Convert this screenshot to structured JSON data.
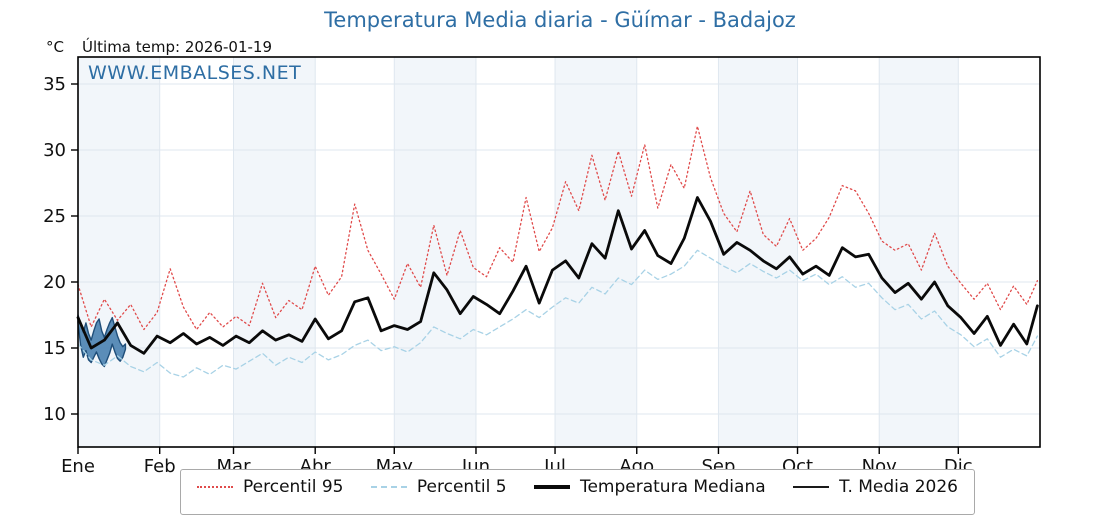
{
  "title": "Temperatura Media diaria - Güímar - Badajoz",
  "header": {
    "y_unit": "°C",
    "last_temp": "Última temp: 2026-01-19"
  },
  "watermark": "WWW.EMBALSES.NET",
  "colors": {
    "title_blue": "#2e6ea4",
    "band": "#f2f6fa",
    "grid": "#dfe7ef",
    "axis": "#000000",
    "p95_red": "#e04b4b",
    "p5_lightblue": "#a8d2e6",
    "median_black": "#0a0a0a",
    "t2026_fill": "#4a82b0",
    "t2026_edge": "#1f4e79"
  },
  "legend": [
    {
      "label": "Percentil 95"
    },
    {
      "label": "Percentil 5"
    },
    {
      "label": "Temperatura Mediana"
    },
    {
      "label": "T. Media 2026"
    }
  ],
  "chart_data": {
    "type": "line",
    "title": "Temperatura Media diaria - Güímar - Badajoz",
    "ylabel": "°C",
    "xlabel": "",
    "ylim": [
      7.5,
      37.1
    ],
    "xlim_days": [
      1,
      366
    ],
    "grid": true,
    "legend_position": "bottom",
    "yticks": [
      10,
      15,
      20,
      25,
      30,
      35
    ],
    "xlabel_months": [
      "Ene",
      "Feb",
      "Mar",
      "Abr",
      "May",
      "Jun",
      "Jul",
      "Ago",
      "Sep",
      "Oct",
      "Nov",
      "Dic"
    ],
    "month_start_days": [
      1,
      32,
      60,
      91,
      121,
      152,
      182,
      213,
      244,
      274,
      305,
      335
    ],
    "x_days": [
      1,
      6,
      11,
      16,
      21,
      26,
      31,
      36,
      41,
      46,
      51,
      56,
      61,
      66,
      71,
      76,
      81,
      86,
      91,
      96,
      101,
      106,
      111,
      116,
      121,
      126,
      131,
      136,
      141,
      146,
      151,
      156,
      161,
      166,
      171,
      176,
      181,
      186,
      191,
      196,
      201,
      206,
      211,
      216,
      221,
      226,
      231,
      236,
      241,
      246,
      251,
      256,
      261,
      266,
      271,
      276,
      281,
      286,
      291,
      296,
      301,
      306,
      311,
      316,
      321,
      326,
      331,
      336,
      341,
      346,
      351,
      356,
      361,
      365
    ],
    "series": [
      {
        "name": "Percentil 95",
        "color": "#e04b4b",
        "dash": "1.5 3",
        "width": 1.3,
        "values": [
          19.8,
          16.6,
          18.7,
          17.1,
          18.3,
          16.4,
          17.7,
          21.0,
          18.1,
          16.4,
          17.7,
          16.6,
          17.4,
          16.7,
          19.9,
          17.3,
          18.6,
          17.9,
          21.2,
          19.0,
          20.4,
          25.9,
          22.4,
          20.6,
          18.7,
          21.4,
          19.6,
          24.3,
          20.5,
          23.9,
          21.1,
          20.4,
          22.6,
          21.5,
          26.4,
          22.3,
          24.1,
          27.6,
          25.4,
          29.6,
          26.2,
          29.9,
          26.5,
          30.4,
          25.6,
          28.9,
          27.1,
          31.8,
          27.9,
          25.2,
          23.8,
          26.9,
          23.6,
          22.7,
          24.8,
          22.4,
          23.3,
          24.9,
          27.3,
          26.9,
          25.2,
          23.1,
          22.4,
          22.9,
          20.9,
          23.7,
          21.2,
          19.9,
          18.7,
          19.9,
          17.9,
          19.7,
          18.3,
          20.1
        ]
      },
      {
        "name": "Percentil 5",
        "color": "#a8d2e6",
        "dash": "5 3.5",
        "width": 1.3,
        "values": [
          15.3,
          14.1,
          13.7,
          14.4,
          13.6,
          13.2,
          13.9,
          13.1,
          12.8,
          13.5,
          13.0,
          13.7,
          13.4,
          14.0,
          14.6,
          13.7,
          14.3,
          13.9,
          14.7,
          14.1,
          14.5,
          15.2,
          15.6,
          14.8,
          15.1,
          14.7,
          15.4,
          16.6,
          16.1,
          15.7,
          16.4,
          16.0,
          16.6,
          17.2,
          17.9,
          17.3,
          18.1,
          18.8,
          18.4,
          19.6,
          19.1,
          20.3,
          19.8,
          20.9,
          20.2,
          20.6,
          21.2,
          22.4,
          21.8,
          21.2,
          20.7,
          21.4,
          20.8,
          20.3,
          20.9,
          20.1,
          20.6,
          19.8,
          20.4,
          19.6,
          19.9,
          18.8,
          17.9,
          18.3,
          17.2,
          17.8,
          16.6,
          16.0,
          15.1,
          15.7,
          14.3,
          14.9,
          14.4,
          15.9
        ]
      },
      {
        "name": "Temperatura Mediana",
        "color": "#0a0a0a",
        "dash": "",
        "width": 2.8,
        "values": [
          17.3,
          15.0,
          15.6,
          16.9,
          15.2,
          14.6,
          15.9,
          15.4,
          16.1,
          15.3,
          15.8,
          15.2,
          15.9,
          15.4,
          16.3,
          15.6,
          16.0,
          15.5,
          17.2,
          15.7,
          16.3,
          18.5,
          18.8,
          16.3,
          16.7,
          16.4,
          17.0,
          20.7,
          19.4,
          17.6,
          18.9,
          18.3,
          17.6,
          19.3,
          21.2,
          18.4,
          20.9,
          21.6,
          20.3,
          22.9,
          21.8,
          25.4,
          22.5,
          23.9,
          22.0,
          21.4,
          23.3,
          26.4,
          24.6,
          22.1,
          23.0,
          22.4,
          21.6,
          21.0,
          21.9,
          20.6,
          21.2,
          20.5,
          22.6,
          21.9,
          22.1,
          20.3,
          19.2,
          19.9,
          18.7,
          20.0,
          18.2,
          17.3,
          16.1,
          17.4,
          15.2,
          16.8,
          15.3,
          18.2
        ]
      }
    ],
    "t_media_2026": {
      "name": "T. Media 2026",
      "days": [
        1,
        2,
        3,
        4,
        5,
        6,
        7,
        8,
        9,
        10,
        11,
        12,
        13,
        14,
        15,
        16,
        17,
        18,
        19
      ],
      "upper": [
        17.5,
        16.8,
        16.2,
        16.9,
        16.1,
        15.6,
        16.3,
        16.9,
        17.2,
        16.3,
        15.8,
        16.4,
        16.9,
        17.3,
        16.6,
        15.9,
        15.4,
        15.1,
        15.3
      ],
      "lower": [
        16.9,
        15.2,
        14.3,
        14.8,
        14.1,
        13.9,
        14.3,
        14.7,
        14.2,
        13.8,
        13.6,
        14.1,
        14.6,
        15.3,
        14.7,
        14.2,
        14.0,
        14.3,
        14.9
      ],
      "fill": "#4a82b0",
      "edge": "#1f4e79"
    }
  }
}
